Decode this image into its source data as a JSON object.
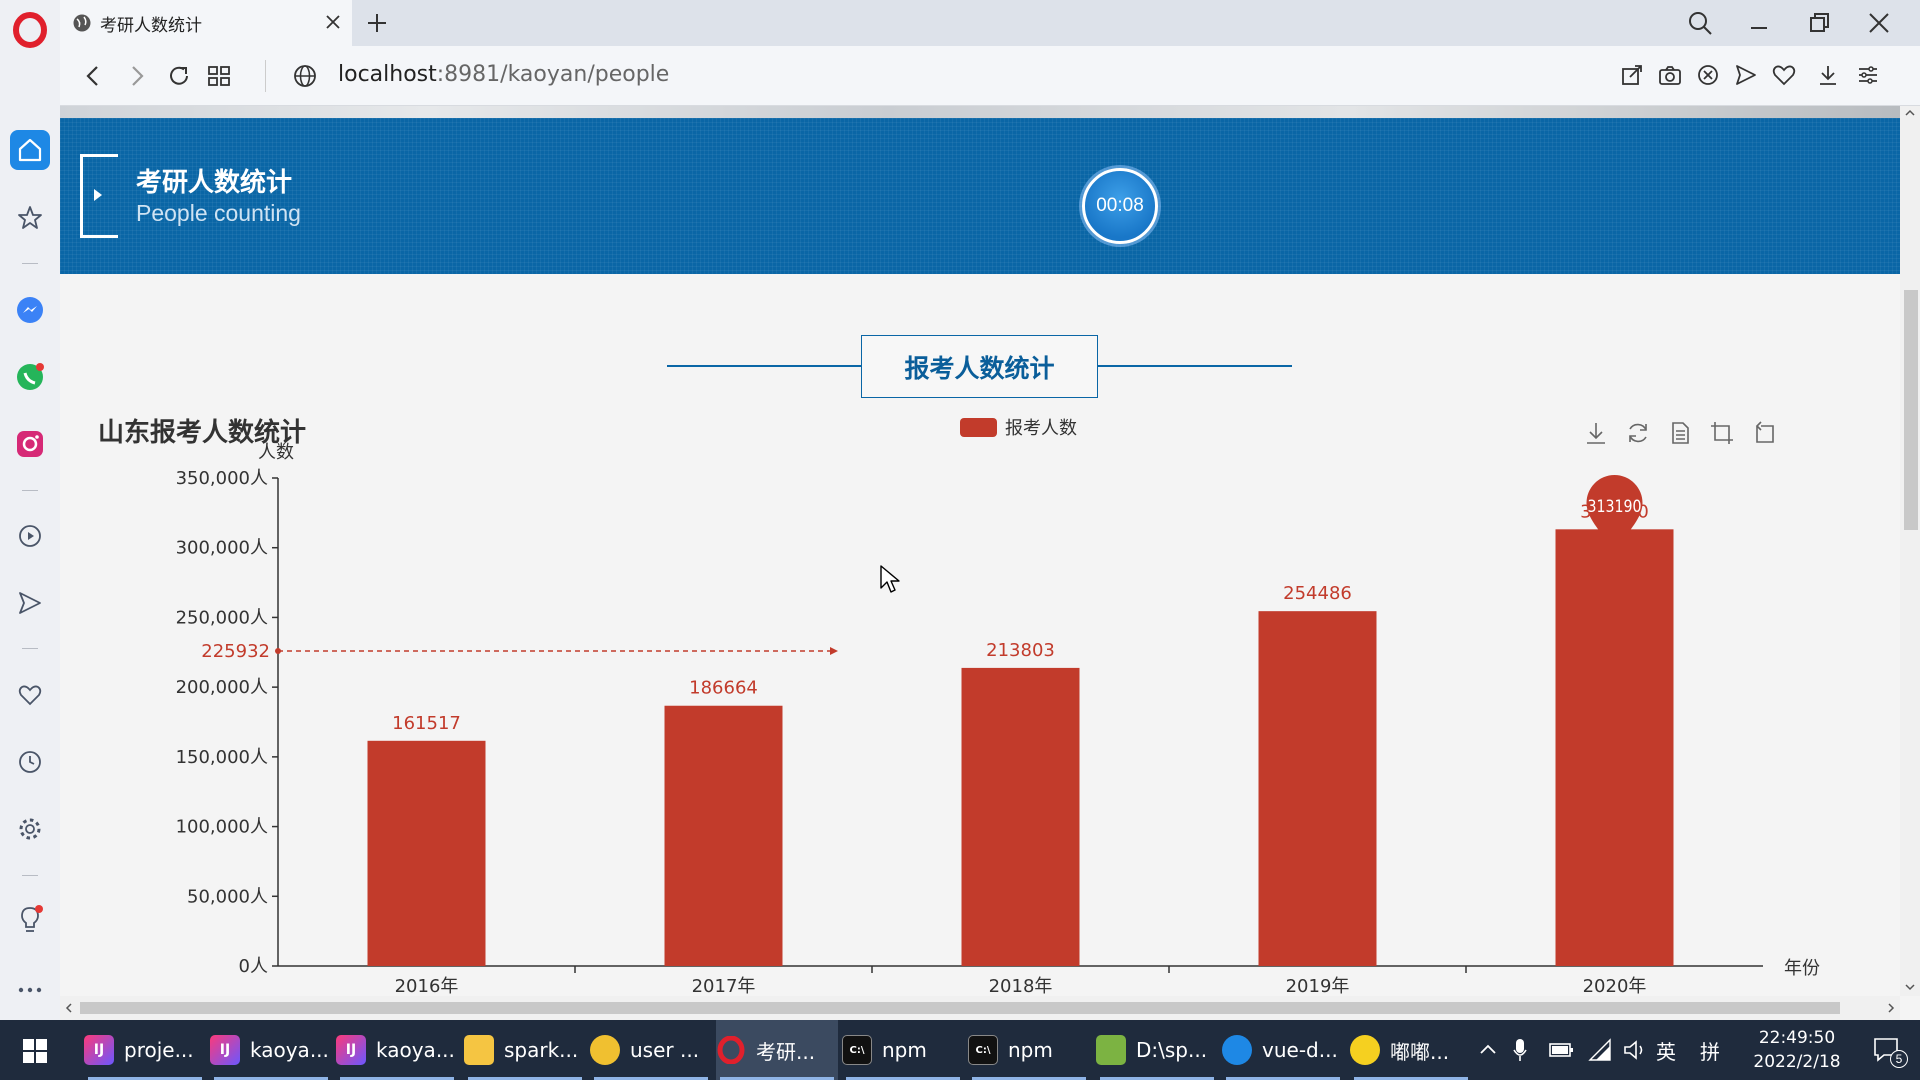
{
  "browser": {
    "tab_title": "考研人数统计",
    "url_host": "localhost",
    "url_rest": ":8981/kaoyan/people"
  },
  "banner": {
    "title": "考研人数统计",
    "subtitle": "People counting",
    "timer": "00:08"
  },
  "section_title": "报考人数统计",
  "chart_data": {
    "type": "bar",
    "title": "山东报考人数统计",
    "ylabel": "人数",
    "xlabel": "年份",
    "ylim": [
      0,
      350000
    ],
    "yticks": [
      "0人",
      "50,000人",
      "100,000人",
      "150,000人",
      "200,000人",
      "250,000人",
      "300,000人",
      "350,000人"
    ],
    "categories": [
      "2016年",
      "2017年",
      "2018年",
      "2019年",
      "2020年"
    ],
    "series": [
      {
        "name": "报考人数",
        "values": [
          161517,
          186664,
          213803,
          254486,
          313190
        ],
        "color": "#c23b2b"
      }
    ],
    "mark_point": {
      "label": "313190",
      "category": "2020年"
    },
    "mark_line": {
      "label": "225932",
      "value": 225932
    },
    "legend": "top-center"
  },
  "taskbar": {
    "items": [
      "proje...",
      "kaoya...",
      "kaoya...",
      "spark...",
      "user ...",
      "考研...",
      "npm",
      "npm",
      "D:\\sp...",
      "vue-d...",
      "嘟嘟..."
    ],
    "ime": "英",
    "ime2": "拼",
    "time": "22:49:50",
    "date": "2022/2/18",
    "notifications": "5"
  }
}
